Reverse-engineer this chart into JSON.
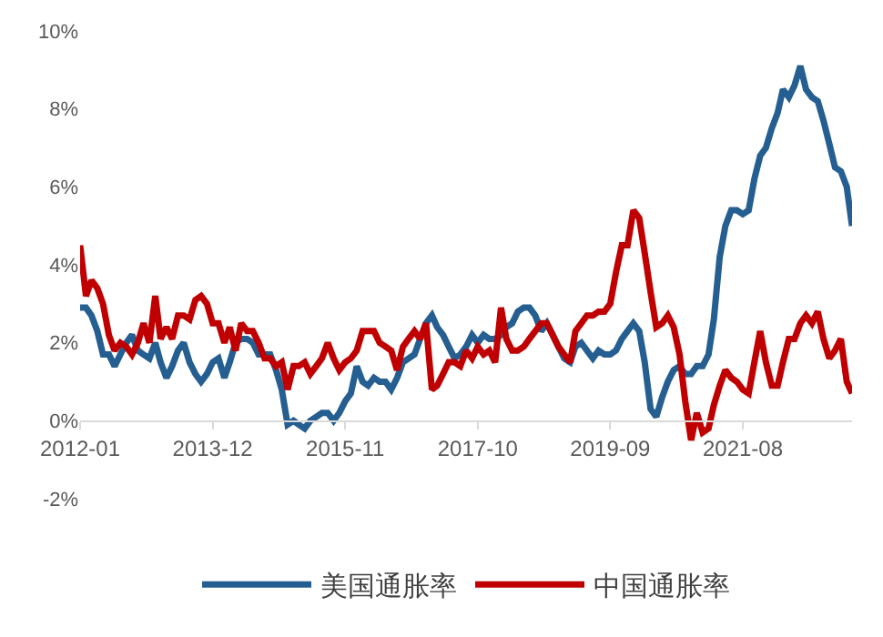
{
  "chart_data": {
    "type": "line",
    "xlim": [
      "2012-01",
      "2023-03"
    ],
    "xticks": [
      {
        "value": "2012-01",
        "label": "2012-01"
      },
      {
        "value": "2013-12",
        "label": "2013-12"
      },
      {
        "value": "2015-11",
        "label": "2015-11"
      },
      {
        "value": "2017-10",
        "label": "2017-10"
      },
      {
        "value": "2019-09",
        "label": "2019-09"
      },
      {
        "value": "2021-08",
        "label": "2021-08"
      }
    ],
    "ylim": [
      -2,
      10
    ],
    "yticks": [
      {
        "value": -2,
        "label": "-2%"
      },
      {
        "value": 0,
        "label": "0%"
      },
      {
        "value": 2,
        "label": "2%"
      },
      {
        "value": 4,
        "label": "4%"
      },
      {
        "value": 6,
        "label": "6%"
      },
      {
        "value": 8,
        "label": "8%"
      },
      {
        "value": 10,
        "label": "10%"
      }
    ],
    "grid": false,
    "legend": "bottom",
    "line_style": "solid",
    "marker": "none",
    "x": [
      "2012-01",
      "2012-02",
      "2012-03",
      "2012-04",
      "2012-05",
      "2012-06",
      "2012-07",
      "2012-08",
      "2012-09",
      "2012-10",
      "2012-11",
      "2012-12",
      "2013-01",
      "2013-02",
      "2013-03",
      "2013-04",
      "2013-05",
      "2013-06",
      "2013-07",
      "2013-08",
      "2013-09",
      "2013-10",
      "2013-11",
      "2013-12",
      "2014-01",
      "2014-02",
      "2014-03",
      "2014-04",
      "2014-05",
      "2014-06",
      "2014-07",
      "2014-08",
      "2014-09",
      "2014-10",
      "2014-11",
      "2014-12",
      "2015-01",
      "2015-02",
      "2015-03",
      "2015-04",
      "2015-05",
      "2015-06",
      "2015-07",
      "2015-08",
      "2015-09",
      "2015-10",
      "2015-11",
      "2015-12",
      "2016-01",
      "2016-02",
      "2016-03",
      "2016-04",
      "2016-05",
      "2016-06",
      "2016-07",
      "2016-08",
      "2016-09",
      "2016-10",
      "2016-11",
      "2016-12",
      "2017-01",
      "2017-02",
      "2017-03",
      "2017-04",
      "2017-05",
      "2017-06",
      "2017-07",
      "2017-08",
      "2017-09",
      "2017-10",
      "2017-11",
      "2017-12",
      "2018-01",
      "2018-02",
      "2018-03",
      "2018-04",
      "2018-05",
      "2018-06",
      "2018-07",
      "2018-08",
      "2018-09",
      "2018-10",
      "2018-11",
      "2018-12",
      "2019-01",
      "2019-02",
      "2019-03",
      "2019-04",
      "2019-05",
      "2019-06",
      "2019-07",
      "2019-08",
      "2019-09",
      "2019-10",
      "2019-11",
      "2019-12",
      "2020-01",
      "2020-02",
      "2020-03",
      "2020-04",
      "2020-05",
      "2020-06",
      "2020-07",
      "2020-08",
      "2020-09",
      "2020-10",
      "2020-11",
      "2020-12",
      "2021-01",
      "2021-02",
      "2021-03",
      "2021-04",
      "2021-05",
      "2021-06",
      "2021-07",
      "2021-08",
      "2021-09",
      "2021-10",
      "2021-11",
      "2021-12",
      "2022-01",
      "2022-02",
      "2022-03",
      "2022-04",
      "2022-05",
      "2022-06",
      "2022-07",
      "2022-08",
      "2022-09",
      "2022-10",
      "2022-11",
      "2022-12",
      "2023-01",
      "2023-02",
      "2023-03"
    ],
    "series": [
      {
        "name": "美国通胀率",
        "color": "#255e91",
        "values": [
          2.9,
          2.9,
          2.7,
          2.3,
          1.7,
          1.7,
          1.4,
          1.7,
          2.0,
          2.2,
          1.8,
          1.7,
          1.6,
          2.0,
          1.5,
          1.1,
          1.4,
          1.8,
          2.0,
          1.5,
          1.2,
          1.0,
          1.2,
          1.5,
          1.6,
          1.1,
          1.5,
          2.0,
          2.1,
          2.1,
          2.0,
          1.7,
          1.7,
          1.7,
          1.3,
          0.8,
          -0.1,
          0.0,
          -0.1,
          -0.2,
          0.0,
          0.1,
          0.2,
          0.2,
          0.0,
          0.2,
          0.5,
          0.7,
          1.4,
          1.0,
          0.9,
          1.1,
          1.0,
          1.0,
          0.8,
          1.1,
          1.5,
          1.6,
          1.7,
          2.1,
          2.5,
          2.7,
          2.4,
          2.2,
          1.9,
          1.6,
          1.7,
          1.9,
          2.2,
          2.0,
          2.2,
          2.1,
          2.1,
          2.2,
          2.4,
          2.5,
          2.8,
          2.9,
          2.9,
          2.7,
          2.3,
          2.5,
          2.2,
          1.9,
          1.6,
          1.5,
          1.9,
          2.0,
          1.8,
          1.6,
          1.8,
          1.7,
          1.7,
          1.8,
          2.1,
          2.3,
          2.5,
          2.3,
          1.5,
          0.3,
          0.1,
          0.6,
          1.0,
          1.3,
          1.4,
          1.2,
          1.2,
          1.4,
          1.4,
          1.7,
          2.6,
          4.2,
          5.0,
          5.4,
          5.4,
          5.3,
          5.4,
          6.2,
          6.8,
          7.0,
          7.5,
          7.9,
          8.5,
          8.3,
          8.6,
          9.1,
          8.5,
          8.3,
          8.2,
          7.7,
          7.1,
          6.5,
          6.4,
          6.0,
          5.0
        ]
      },
      {
        "name": "中国通胀率",
        "color": "#c00000",
        "values": [
          4.5,
          3.2,
          3.6,
          3.4,
          3.0,
          2.2,
          1.8,
          2.0,
          1.9,
          1.7,
          2.0,
          2.5,
          2.0,
          3.2,
          2.1,
          2.4,
          2.1,
          2.7,
          2.7,
          2.6,
          3.1,
          3.2,
          3.0,
          2.5,
          2.5,
          2.0,
          2.4,
          1.8,
          2.5,
          2.3,
          2.3,
          2.0,
          1.6,
          1.6,
          1.4,
          1.5,
          0.8,
          1.4,
          1.4,
          1.5,
          1.2,
          1.4,
          1.6,
          2.0,
          1.6,
          1.3,
          1.5,
          1.6,
          1.8,
          2.3,
          2.3,
          2.3,
          2.0,
          1.9,
          1.8,
          1.3,
          1.9,
          2.1,
          2.3,
          2.1,
          2.5,
          0.8,
          0.9,
          1.2,
          1.5,
          1.5,
          1.4,
          1.8,
          1.6,
          1.9,
          1.7,
          1.8,
          1.5,
          2.9,
          2.1,
          1.8,
          1.8,
          1.9,
          2.1,
          2.3,
          2.5,
          2.5,
          2.2,
          1.9,
          1.7,
          1.5,
          2.3,
          2.5,
          2.7,
          2.7,
          2.8,
          2.8,
          3.0,
          3.8,
          4.5,
          4.5,
          5.4,
          5.2,
          4.3,
          3.3,
          2.4,
          2.5,
          2.7,
          2.4,
          1.7,
          0.5,
          -0.5,
          0.2,
          -0.3,
          -0.2,
          0.4,
          0.9,
          1.3,
          1.1,
          1.0,
          0.8,
          0.7,
          1.5,
          2.3,
          1.5,
          0.9,
          0.9,
          1.5,
          2.1,
          2.1,
          2.5,
          2.7,
          2.5,
          2.8,
          2.1,
          1.6,
          1.8,
          2.1,
          1.0,
          0.7
        ]
      }
    ]
  }
}
